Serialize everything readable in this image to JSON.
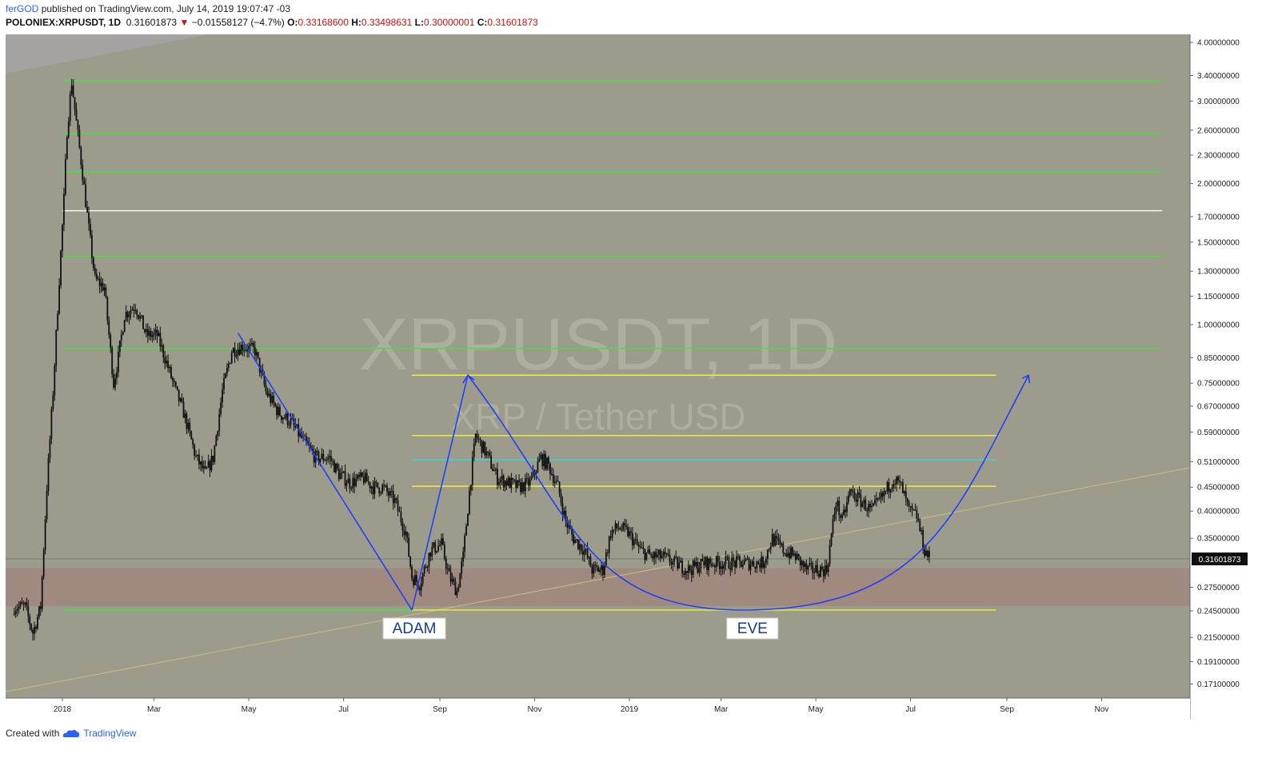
{
  "header": {
    "author": "ferGOD",
    "published": "published on TradingView.com, July 14, 2019 19:07:47 -03",
    "symbol": "POLONIEX:XRPUSDT, 1D",
    "last": "0.31601873",
    "arrow": "▼",
    "change": "−0.01558127 (−4.7%)",
    "open_label": "O:",
    "open": "0.33168600",
    "high_label": "H:",
    "high": "0.33498631",
    "low_label": "L:",
    "low": "0.30000001",
    "close_label": "C:",
    "close": "0.31601873"
  },
  "footer": {
    "created_with": "Created with",
    "brand": "TradingView",
    "logo_icon": "tradingview-cloud-icon"
  },
  "colors": {
    "plot_bg": "#9c9b8c",
    "band": "#a08a80",
    "green_level": "#39e639",
    "yellow_level": "#f0f03a",
    "cyan_level": "#3ad6d6",
    "white_level": "#ffffff",
    "drawing_blue": "#1c3cff",
    "candles": "#111111",
    "price_tag_bg": "#111111"
  },
  "chart_data": {
    "type": "line",
    "title": "XRPUSDT, 1D",
    "subtitle": "XRP / Tether USD",
    "x_ticks": [
      "2018",
      "Mar",
      "May",
      "Jul",
      "Sep",
      "Nov",
      "2019",
      "Mar",
      "May",
      "Jul",
      "Sep",
      "Nov"
    ],
    "x_tick_dates": [
      "2018-01-01",
      "2018-03-01",
      "2018-05-01",
      "2018-07-01",
      "2018-09-01",
      "2018-11-01",
      "2019-01-01",
      "2019-03-01",
      "2019-05-01",
      "2019-07-01",
      "2019-09-01",
      "2019-11-01"
    ],
    "y_scale": "log",
    "y_ticks": [
      "4.00000000",
      "3.40000000",
      "3.00000000",
      "2.60000000",
      "2.30000000",
      "2.00000000",
      "1.70000000",
      "1.50000000",
      "1.30000000",
      "1.15000000",
      "1.00000000",
      "0.85000000",
      "0.75000000",
      "0.67000000",
      "0.59000000",
      "0.51000000",
      "0.45000000",
      "0.40000000",
      "0.35000000",
      "0.31601873",
      "0.27500000",
      "0.24500000",
      "0.21500000",
      "0.19100000",
      "0.17100000"
    ],
    "current_price": "0.31601873",
    "xlim": [
      "2017-12-01",
      "2019-12-15"
    ],
    "ylim": [
      0.16,
      4.15
    ],
    "series": [
      {
        "dates": [
          "2017-12-01",
          "2017-12-08",
          "2017-12-13",
          "2017-12-18",
          "2017-12-22",
          "2017-12-26",
          "2017-12-30",
          "2018-01-02",
          "2018-01-04",
          "2018-01-07",
          "2018-01-10",
          "2018-01-14",
          "2018-01-18",
          "2018-01-22",
          "2018-01-28",
          "2018-02-03",
          "2018-02-06",
          "2018-02-10",
          "2018-02-17",
          "2018-02-24",
          "2018-03-03",
          "2018-03-08",
          "2018-03-15",
          "2018-03-20",
          "2018-03-28",
          "2018-04-03",
          "2018-04-08",
          "2018-04-14",
          "2018-04-20",
          "2018-04-27",
          "2018-05-05",
          "2018-05-12",
          "2018-05-20",
          "2018-05-28",
          "2018-06-06",
          "2018-06-13",
          "2018-06-22",
          "2018-06-28",
          "2018-07-05",
          "2018-07-14",
          "2018-07-20",
          "2018-07-26",
          "2018-08-03",
          "2018-08-10",
          "2018-08-14",
          "2018-08-19",
          "2018-08-26",
          "2018-09-02",
          "2018-09-07",
          "2018-09-12",
          "2018-09-16",
          "2018-09-20",
          "2018-09-24",
          "2018-10-01",
          "2018-10-08",
          "2018-10-15",
          "2018-10-22",
          "2018-10-29",
          "2018-11-05",
          "2018-11-10",
          "2018-11-16",
          "2018-11-21",
          "2018-11-26",
          "2018-12-03",
          "2018-12-08",
          "2018-12-15",
          "2018-12-20",
          "2018-12-25",
          "2018-12-31",
          "2019-01-08",
          "2019-01-15",
          "2019-01-22",
          "2019-01-30",
          "2019-02-08",
          "2019-02-18",
          "2019-02-25",
          "2019-03-05",
          "2019-03-12",
          "2019-03-20",
          "2019-03-28",
          "2019-04-03",
          "2019-04-10",
          "2019-04-18",
          "2019-04-25",
          "2019-05-01",
          "2019-05-08",
          "2019-05-14",
          "2019-05-18",
          "2019-05-23",
          "2019-05-30",
          "2019-06-06",
          "2019-06-13",
          "2019-06-20",
          "2019-06-25",
          "2019-06-30",
          "2019-07-05",
          "2019-07-10",
          "2019-07-14"
        ],
        "values": [
          0.25,
          0.25,
          0.22,
          0.25,
          0.45,
          0.72,
          1.25,
          1.85,
          2.6,
          3.3,
          2.7,
          2.1,
          1.6,
          1.25,
          1.2,
          0.75,
          0.85,
          1.05,
          1.1,
          0.95,
          0.95,
          0.85,
          0.72,
          0.65,
          0.52,
          0.48,
          0.52,
          0.72,
          0.88,
          0.9,
          0.88,
          0.72,
          0.65,
          0.62,
          0.56,
          0.52,
          0.52,
          0.48,
          0.46,
          0.47,
          0.45,
          0.45,
          0.42,
          0.36,
          0.29,
          0.28,
          0.33,
          0.34,
          0.29,
          0.27,
          0.32,
          0.44,
          0.58,
          0.53,
          0.47,
          0.46,
          0.45,
          0.46,
          0.52,
          0.5,
          0.45,
          0.38,
          0.35,
          0.33,
          0.3,
          0.3,
          0.36,
          0.37,
          0.36,
          0.33,
          0.32,
          0.32,
          0.31,
          0.3,
          0.31,
          0.31,
          0.31,
          0.31,
          0.31,
          0.31,
          0.35,
          0.33,
          0.32,
          0.3,
          0.3,
          0.3,
          0.42,
          0.38,
          0.44,
          0.42,
          0.4,
          0.43,
          0.47,
          0.45,
          0.4,
          0.39,
          0.33,
          0.316
        ]
      }
    ],
    "levels": [
      {
        "value": 3.31,
        "color": "green",
        "from": "2018-01-01",
        "to": "2019-12-10"
      },
      {
        "value": 2.56,
        "color": "green",
        "from": "2018-01-01",
        "to": "2019-12-10"
      },
      {
        "value": 2.12,
        "color": "green",
        "from": "2018-01-01",
        "to": "2019-12-10"
      },
      {
        "value": 1.75,
        "color": "white",
        "from": "2018-01-01",
        "to": "2019-12-10"
      },
      {
        "value": 1.4,
        "color": "green",
        "from": "2018-01-01",
        "to": "2019-12-10"
      },
      {
        "value": 0.89,
        "color": "green",
        "from": "2018-01-01",
        "to": "2019-12-10"
      },
      {
        "value": 0.78,
        "color": "yellow",
        "from": "2018-08-14",
        "to": "2019-08-25"
      },
      {
        "value": 0.58,
        "color": "yellow",
        "from": "2018-08-14",
        "to": "2019-08-25"
      },
      {
        "value": 0.515,
        "color": "cyan",
        "from": "2018-08-14",
        "to": "2019-08-25"
      },
      {
        "value": 0.452,
        "color": "yellow",
        "from": "2018-08-14",
        "to": "2019-08-25"
      },
      {
        "value": 0.246,
        "color": "yellow",
        "from": "2018-08-14",
        "to": "2019-08-25"
      },
      {
        "value": 0.246,
        "color": "green",
        "from": "2018-01-01",
        "to": "2018-08-14"
      }
    ],
    "zone": {
      "low": 0.251,
      "high": 0.302
    },
    "annotations": [
      {
        "text": "ADAM",
        "date": "2018-08-14"
      },
      {
        "text": "EVE",
        "date": "2019-03-15"
      }
    ]
  }
}
